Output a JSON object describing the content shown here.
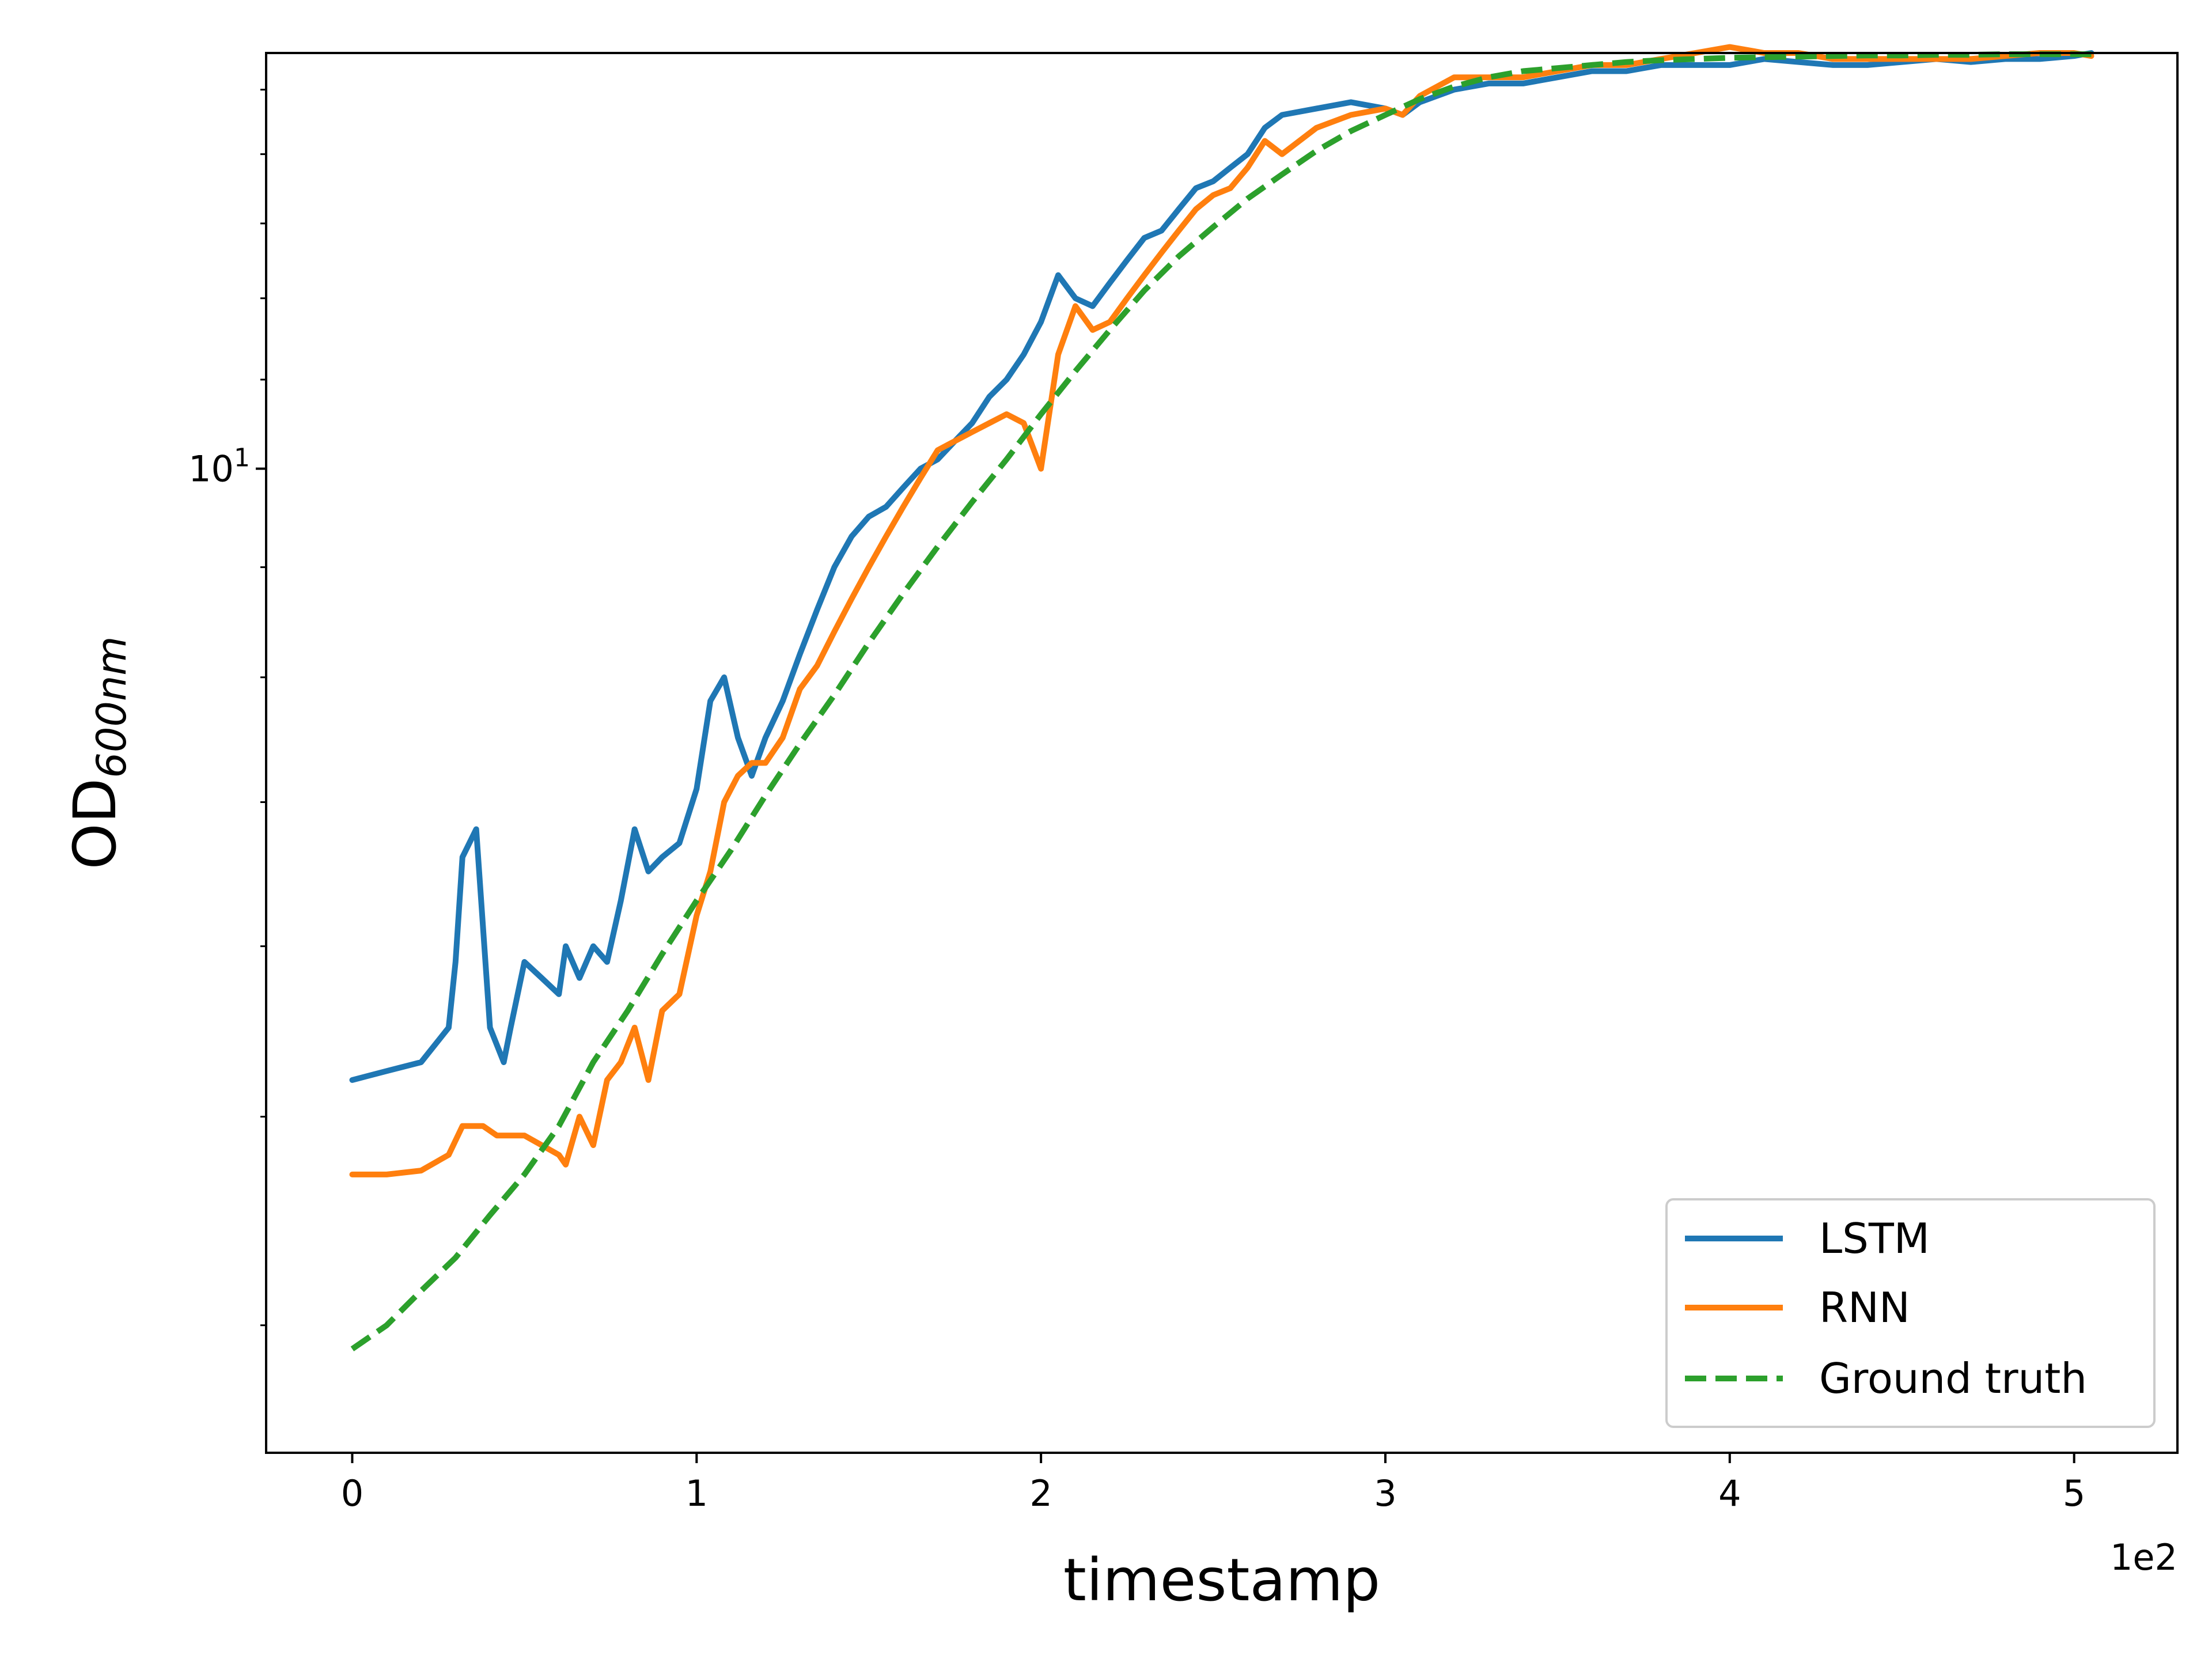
{
  "chart_data": {
    "type": "line",
    "xlabel": "timestamp",
    "x_offset_label": "1e2",
    "ylabel_main": "OD",
    "ylabel_sub": "600nm",
    "yscale": "log",
    "xlim": [
      -0.25,
      5.3
    ],
    "ylim": [
      3.49,
      15.6
    ],
    "x_ticks": [
      0,
      1,
      2,
      3,
      4,
      5
    ],
    "x_tick_labels": [
      "0",
      "1",
      "2",
      "3",
      "4",
      "5"
    ],
    "y_major_tick": {
      "value": 10,
      "base": "10",
      "exp": "1"
    },
    "y_minor_ticks": [
      4,
      5,
      6,
      7,
      8,
      9,
      11,
      12,
      13,
      14,
      15
    ],
    "legend_position": "lower right",
    "series": [
      {
        "name": "LSTM",
        "color": "#1f77b4",
        "dash": "solid",
        "x": [
          0,
          0.1,
          0.2,
          0.28,
          0.3,
          0.32,
          0.36,
          0.4,
          0.44,
          0.46,
          0.5,
          0.55,
          0.6,
          0.62,
          0.66,
          0.7,
          0.74,
          0.78,
          0.82,
          0.86,
          0.9,
          0.95,
          1.0,
          1.04,
          1.08,
          1.12,
          1.16,
          1.2,
          1.25,
          1.3,
          1.35,
          1.4,
          1.45,
          1.5,
          1.55,
          1.6,
          1.65,
          1.7,
          1.75,
          1.8,
          1.85,
          1.9,
          1.95,
          2.0,
          2.05,
          2.1,
          2.15,
          2.2,
          2.25,
          2.3,
          2.35,
          2.4,
          2.45,
          2.5,
          2.55,
          2.6,
          2.65,
          2.7,
          2.8,
          2.9,
          3.0,
          3.05,
          3.1,
          3.2,
          3.3,
          3.4,
          3.5,
          3.6,
          3.7,
          3.8,
          3.9,
          4.0,
          4.1,
          4.2,
          4.3,
          4.4,
          4.5,
          4.6,
          4.7,
          4.8,
          4.9,
          5.0,
          5.05
        ],
        "y": [
          5.2,
          5.25,
          5.3,
          5.5,
          5.9,
          6.6,
          6.8,
          5.5,
          5.3,
          5.5,
          5.9,
          5.8,
          5.7,
          6.0,
          5.8,
          6.0,
          5.9,
          6.3,
          6.8,
          6.5,
          6.6,
          6.7,
          7.1,
          7.8,
          8.0,
          7.5,
          7.2,
          7.5,
          7.8,
          8.2,
          8.6,
          9.0,
          9.3,
          9.5,
          9.6,
          9.8,
          10.0,
          10.1,
          10.3,
          10.5,
          10.8,
          11.0,
          11.3,
          11.7,
          12.3,
          12.0,
          11.9,
          12.2,
          12.5,
          12.8,
          12.9,
          13.2,
          13.5,
          13.6,
          13.8,
          14.0,
          14.4,
          14.6,
          14.7,
          14.8,
          14.7,
          14.6,
          14.8,
          15.0,
          15.1,
          15.1,
          15.2,
          15.3,
          15.3,
          15.4,
          15.4,
          15.4,
          15.5,
          15.45,
          15.4,
          15.4,
          15.45,
          15.5,
          15.45,
          15.5,
          15.5,
          15.55,
          15.6
        ]
      },
      {
        "name": "RNN",
        "color": "#ff7f0e",
        "dash": "solid",
        "x": [
          0,
          0.1,
          0.2,
          0.28,
          0.32,
          0.38,
          0.42,
          0.46,
          0.5,
          0.55,
          0.6,
          0.62,
          0.66,
          0.7,
          0.74,
          0.78,
          0.82,
          0.86,
          0.9,
          0.95,
          1.0,
          1.04,
          1.08,
          1.12,
          1.16,
          1.2,
          1.25,
          1.3,
          1.35,
          1.4,
          1.45,
          1.5,
          1.55,
          1.6,
          1.65,
          1.7,
          1.75,
          1.8,
          1.85,
          1.9,
          1.95,
          2.0,
          2.05,
          2.1,
          2.15,
          2.2,
          2.25,
          2.3,
          2.35,
          2.4,
          2.45,
          2.5,
          2.55,
          2.6,
          2.65,
          2.7,
          2.8,
          2.9,
          3.0,
          3.05,
          3.1,
          3.2,
          3.3,
          3.4,
          3.5,
          3.6,
          3.7,
          3.8,
          3.9,
          4.0,
          4.1,
          4.2,
          4.3,
          4.4,
          4.5,
          4.6,
          4.7,
          4.8,
          4.9,
          5.0,
          5.05
        ],
        "y": [
          4.7,
          4.7,
          4.72,
          4.8,
          4.95,
          4.95,
          4.9,
          4.9,
          4.9,
          4.85,
          4.8,
          4.75,
          5.0,
          4.85,
          5.2,
          5.3,
          5.5,
          5.2,
          5.6,
          5.7,
          6.2,
          6.5,
          7.0,
          7.2,
          7.3,
          7.3,
          7.5,
          7.9,
          8.1,
          8.4,
          8.7,
          9.0,
          9.3,
          9.6,
          9.9,
          10.2,
          10.3,
          10.4,
          10.5,
          10.6,
          10.5,
          10.0,
          11.3,
          11.9,
          11.6,
          11.7,
          12.0,
          12.3,
          12.6,
          12.9,
          13.2,
          13.4,
          13.5,
          13.8,
          14.2,
          14.0,
          14.4,
          14.6,
          14.7,
          14.6,
          14.9,
          15.2,
          15.2,
          15.2,
          15.3,
          15.4,
          15.4,
          15.5,
          15.6,
          15.7,
          15.6,
          15.6,
          15.5,
          15.5,
          15.5,
          15.5,
          15.5,
          15.55,
          15.6,
          15.6,
          15.55
        ]
      },
      {
        "name": "Ground truth",
        "color": "#2ca02c",
        "dash": "dashed",
        "x": [
          0,
          0.1,
          0.2,
          0.3,
          0.4,
          0.5,
          0.6,
          0.7,
          0.8,
          0.9,
          1.0,
          1.1,
          1.2,
          1.3,
          1.4,
          1.5,
          1.6,
          1.7,
          1.8,
          1.9,
          2.0,
          2.1,
          2.2,
          2.3,
          2.4,
          2.5,
          2.6,
          2.7,
          2.8,
          2.9,
          3.0,
          3.1,
          3.2,
          3.3,
          3.4,
          3.5,
          3.6,
          3.7,
          3.8,
          3.9,
          4.0,
          4.1,
          4.2,
          4.3,
          4.4,
          4.5,
          4.6,
          4.7,
          4.8,
          4.9,
          5.0,
          5.05
        ],
        "y": [
          3.9,
          4.0,
          4.15,
          4.3,
          4.5,
          4.7,
          4.95,
          5.3,
          5.6,
          5.95,
          6.3,
          6.65,
          7.05,
          7.45,
          7.85,
          8.3,
          8.75,
          9.2,
          9.65,
          10.1,
          10.6,
          11.1,
          11.6,
          12.1,
          12.55,
          12.95,
          13.35,
          13.7,
          14.05,
          14.35,
          14.6,
          14.85,
          15.05,
          15.2,
          15.3,
          15.35,
          15.4,
          15.45,
          15.48,
          15.5,
          15.52,
          15.53,
          15.54,
          15.55,
          15.56,
          15.56,
          15.57,
          15.57,
          15.58,
          15.58,
          15.58,
          15.58
        ]
      }
    ]
  }
}
